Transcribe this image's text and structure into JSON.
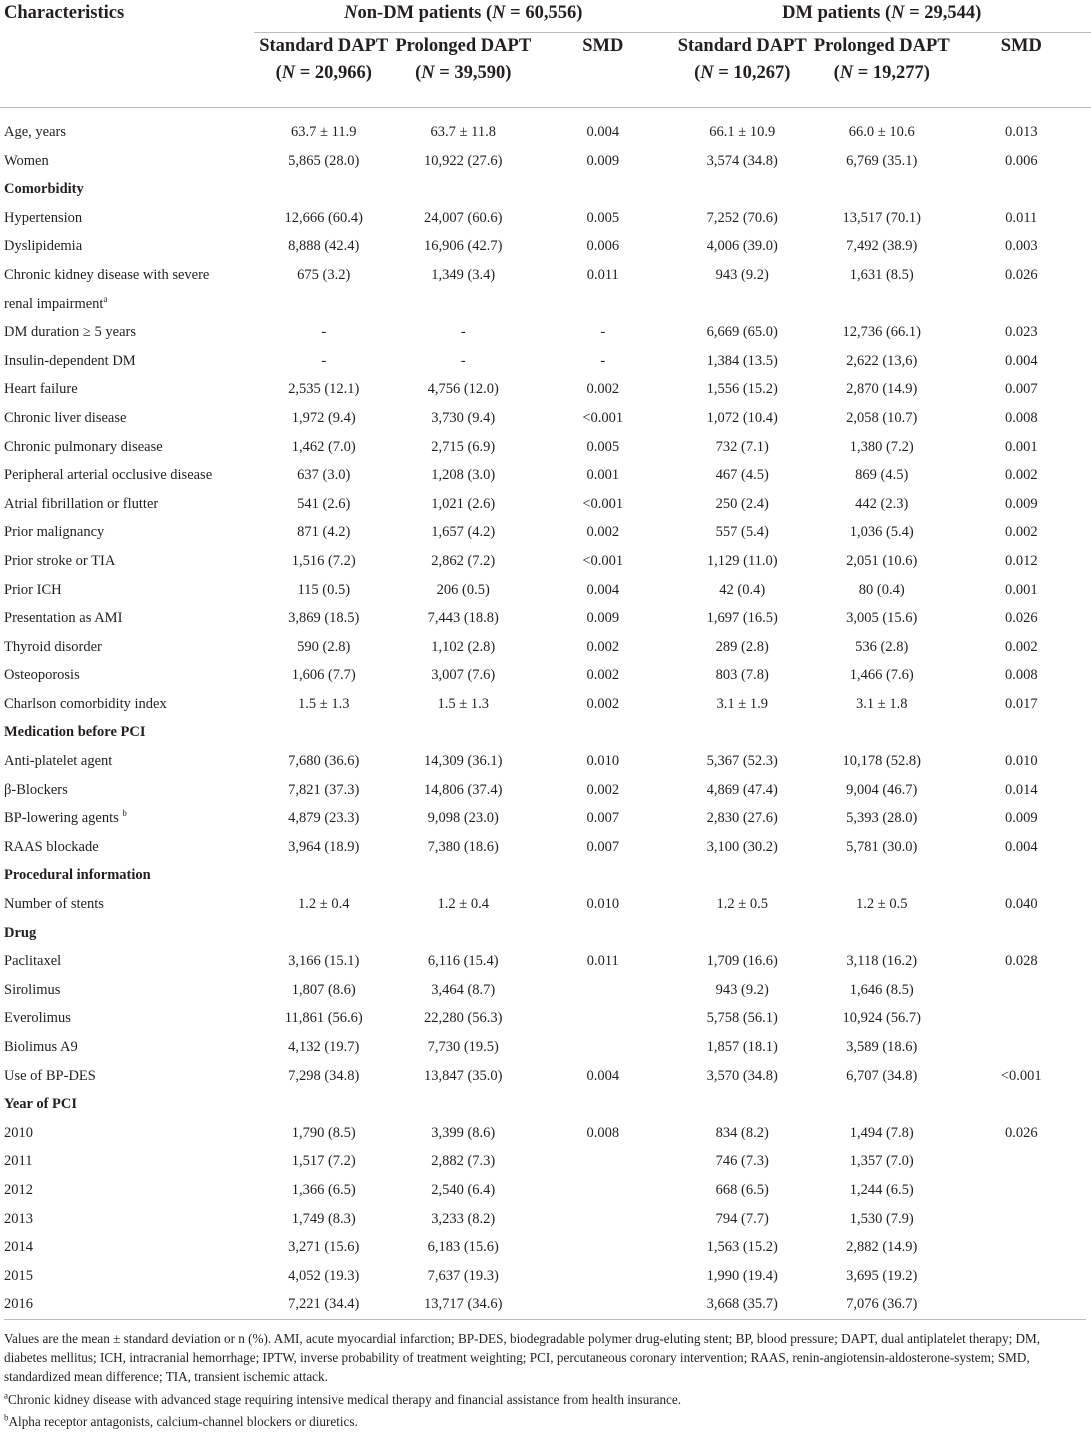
{
  "header": {
    "characteristics": "Characteristics",
    "nondm_group": "Non-DM patients (N = 60,556)",
    "dm_group": "DM patients (N = 29,544)",
    "nondm_std_l1": "Standard DAPT",
    "nondm_std_l2": "(N = 20,966)",
    "nondm_pro_l1": "Prolonged DAPT",
    "nondm_pro_l2": "(N = 39,590)",
    "smd": "SMD",
    "dm_std_l1": "Standard DAPT",
    "dm_std_l2": "(N = 10,267)",
    "dm_pro_l1": "Prolonged DAPT",
    "dm_pro_l2": "(N = 19,277)"
  },
  "rows": [
    {
      "label": "Age, years",
      "v": [
        "63.7 ± 11.9",
        "63.7 ± 11.8",
        "0.004",
        "66.1 ± 10.9",
        "66.0 ± 10.6",
        "0.013"
      ]
    },
    {
      "label": "Women",
      "v": [
        "5,865 (28.0)",
        "10,922 (27.6)",
        "0.009",
        "3,574 (34.8)",
        "6,769 (35.1)",
        "0.006"
      ]
    },
    {
      "label": "Comorbidity",
      "section": true
    },
    {
      "label": "Hypertension",
      "v": [
        "12,666 (60.4)",
        "24,007 (60.6)",
        "0.005",
        "7,252 (70.6)",
        "13,517 (70.1)",
        "0.011"
      ]
    },
    {
      "label": "Dyslipidemia",
      "v": [
        "8,888 (42.4)",
        "16,906 (42.7)",
        "0.006",
        "4,006 (39.0)",
        "7,492 (38.9)",
        "0.003"
      ]
    },
    {
      "label": "Chronic kidney disease with severe",
      "label2": "renal impairment",
      "sup": "a",
      "v": [
        "675 (3.2)",
        "1,349 (3.4)",
        "0.011",
        "943 (9.2)",
        "1,631 (8.5)",
        "0.026"
      ]
    },
    {
      "label": "DM duration ≥ 5 years",
      "v": [
        "-",
        "-",
        "-",
        "6,669 (65.0)",
        "12,736 (66.1)",
        "0.023"
      ]
    },
    {
      "label": "Insulin-dependent DM",
      "v": [
        "-",
        "-",
        "-",
        "1,384 (13.5)",
        "2,622 (13,6)",
        "0.004"
      ]
    },
    {
      "label": "Heart failure",
      "v": [
        "2,535 (12.1)",
        "4,756 (12.0)",
        "0.002",
        "1,556 (15.2)",
        "2,870 (14.9)",
        "0.007"
      ]
    },
    {
      "label": "Chronic liver disease",
      "v": [
        "1,972 (9.4)",
        "3,730 (9.4)",
        "<0.001",
        "1,072 (10.4)",
        "2,058 (10.7)",
        "0.008"
      ]
    },
    {
      "label": "Chronic pulmonary disease",
      "v": [
        "1,462 (7.0)",
        "2,715 (6.9)",
        "0.005",
        "732 (7.1)",
        "1,380 (7.2)",
        "0.001"
      ]
    },
    {
      "label": "Peripheral arterial occlusive disease",
      "v": [
        "637 (3.0)",
        "1,208 (3.0)",
        "0.001",
        "467 (4.5)",
        "869 (4.5)",
        "0.002"
      ]
    },
    {
      "label": "Atrial fibrillation or flutter",
      "v": [
        "541 (2.6)",
        "1,021 (2.6)",
        "<0.001",
        "250 (2.4)",
        "442 (2.3)",
        "0.009"
      ]
    },
    {
      "label": "Prior malignancy",
      "v": [
        "871 (4.2)",
        "1,657 (4.2)",
        "0.002",
        "557 (5.4)",
        "1,036 (5.4)",
        "0.002"
      ]
    },
    {
      "label": "Prior stroke or TIA",
      "v": [
        "1,516 (7.2)",
        "2,862 (7.2)",
        "<0.001",
        "1,129 (11.0)",
        "2,051 (10.6)",
        "0.012"
      ]
    },
    {
      "label": "Prior ICH",
      "v": [
        "115 (0.5)",
        "206 (0.5)",
        "0.004",
        "42 (0.4)",
        "80 (0.4)",
        "0.001"
      ]
    },
    {
      "label": "Presentation as AMI",
      "v": [
        "3,869 (18.5)",
        "7,443 (18.8)",
        "0.009",
        "1,697 (16.5)",
        "3,005 (15.6)",
        "0.026"
      ]
    },
    {
      "label": "Thyroid disorder",
      "v": [
        "590 (2.8)",
        "1,102 (2.8)",
        "0.002",
        "289 (2.8)",
        "536 (2.8)",
        "0.002"
      ]
    },
    {
      "label": "Osteoporosis",
      "v": [
        "1,606 (7.7)",
        "3,007 (7.6)",
        "0.002",
        "803 (7.8)",
        "1,466 (7.6)",
        "0.008"
      ]
    },
    {
      "label": "Charlson comorbidity index",
      "v": [
        "1.5 ± 1.3",
        "1.5 ± 1.3",
        "0.002",
        "3.1 ± 1.9",
        "3.1 ± 1.8",
        "0.017"
      ]
    },
    {
      "label": "Medication before PCI",
      "section": true
    },
    {
      "label": "Anti-platelet agent",
      "v": [
        "7,680 (36.6)",
        "14,309 (36.1)",
        "0.010",
        "5,367 (52.3)",
        "10,178 (52.8)",
        "0.010"
      ]
    },
    {
      "label": "β-Blockers",
      "v": [
        "7,821 (37.3)",
        "14,806 (37.4)",
        "0.002",
        "4,869 (47.4)",
        "9,004 (46.7)",
        "0.014"
      ]
    },
    {
      "label": "BP-lowering agents ",
      "sup": "b",
      "v": [
        "4,879 (23.3)",
        "9,098 (23.0)",
        "0.007",
        "2,830 (27.6)",
        "5,393 (28.0)",
        "0.009"
      ]
    },
    {
      "label": "RAAS blockade",
      "v": [
        "3,964 (18.9)",
        "7,380 (18.6)",
        "0.007",
        "3,100 (30.2)",
        "5,781 (30.0)",
        "0.004"
      ]
    },
    {
      "label": "Procedural information",
      "section": true
    },
    {
      "label": "Number of stents",
      "v": [
        "1.2 ± 0.4",
        "1.2 ± 0.4",
        "0.010",
        "1.2 ± 0.5",
        "1.2 ± 0.5",
        "0.040"
      ]
    },
    {
      "label": "Drug",
      "section": true
    },
    {
      "label": "Paclitaxel",
      "v": [
        "3,166 (15.1)",
        "6,116 (15.4)",
        "0.011",
        "1,709 (16.6)",
        "3,118 (16.2)",
        "0.028"
      ]
    },
    {
      "label": "Sirolimus",
      "v": [
        "1,807 (8.6)",
        "3,464 (8.7)",
        "",
        "943 (9.2)",
        "1,646 (8.5)",
        ""
      ]
    },
    {
      "label": "Everolimus",
      "v": [
        "11,861 (56.6)",
        "22,280 (56.3)",
        "",
        "5,758 (56.1)",
        "10,924 (56.7)",
        ""
      ]
    },
    {
      "label": "Biolimus A9",
      "v": [
        "4,132 (19.7)",
        "7,730 (19.5)",
        "",
        "1,857 (18.1)",
        "3,589 (18.6)",
        ""
      ]
    },
    {
      "label": "Use of BP-DES",
      "v": [
        "7,298 (34.8)",
        "13,847 (35.0)",
        "0.004",
        "3,570 (34.8)",
        "6,707 (34.8)",
        "<0.001"
      ]
    },
    {
      "label": "Year of PCI",
      "section": true
    },
    {
      "label": "2010",
      "v": [
        "1,790 (8.5)",
        "3,399 (8.6)",
        "0.008",
        "834 (8.2)",
        "1,494 (7.8)",
        "0.026"
      ]
    },
    {
      "label": "2011",
      "v": [
        "1,517 (7.2)",
        "2,882 (7.3)",
        "",
        "746 (7.3)",
        "1,357 (7.0)",
        ""
      ]
    },
    {
      "label": "2012",
      "v": [
        "1,366 (6.5)",
        "2,540 (6.4)",
        "",
        "668 (6.5)",
        "1,244 (6.5)",
        ""
      ]
    },
    {
      "label": "2013",
      "v": [
        "1,749 (8.3)",
        "3,233 (8.2)",
        "",
        "794 (7.7)",
        "1,530 (7.9)",
        ""
      ]
    },
    {
      "label": "2014",
      "v": [
        "3,271 (15.6)",
        "6,183 (15.6)",
        "",
        "1,563 (15.2)",
        "2,882 (14.9)",
        ""
      ]
    },
    {
      "label": "2015",
      "v": [
        "4,052 (19.3)",
        "7,637 (19.3)",
        "",
        "1,990 (19.4)",
        "3,695 (19.2)",
        ""
      ]
    },
    {
      "label": "2016",
      "v": [
        "7,221 (34.4)",
        "13,717 (34.6)",
        "",
        "3,668 (35.7)",
        "7,076 (36.7)",
        ""
      ]
    }
  ],
  "notes": {
    "main": "Values are the mean ± standard deviation or n (%). AMI, acute myocardial infarction; BP-DES, biodegradable polymer drug-eluting stent; BP, blood pressure; DAPT, dual antiplatelet therapy; DM, diabetes mellitus; ICH, intracranial hemorrhage; IPTW, inverse probability of treatment weighting; PCI, percutaneous coronary intervention; RAAS, renin-angiotensin-aldosterone-system; SMD, standardized mean difference; TIA, transient ischemic attack.",
    "a_mark": "a",
    "a": "Chronic kidney disease with advanced stage requiring intensive medical therapy and financial assistance from health insurance.",
    "b_mark": "b",
    "b": "Alpha receptor antagonists, calcium-channel blockers or diuretics."
  }
}
